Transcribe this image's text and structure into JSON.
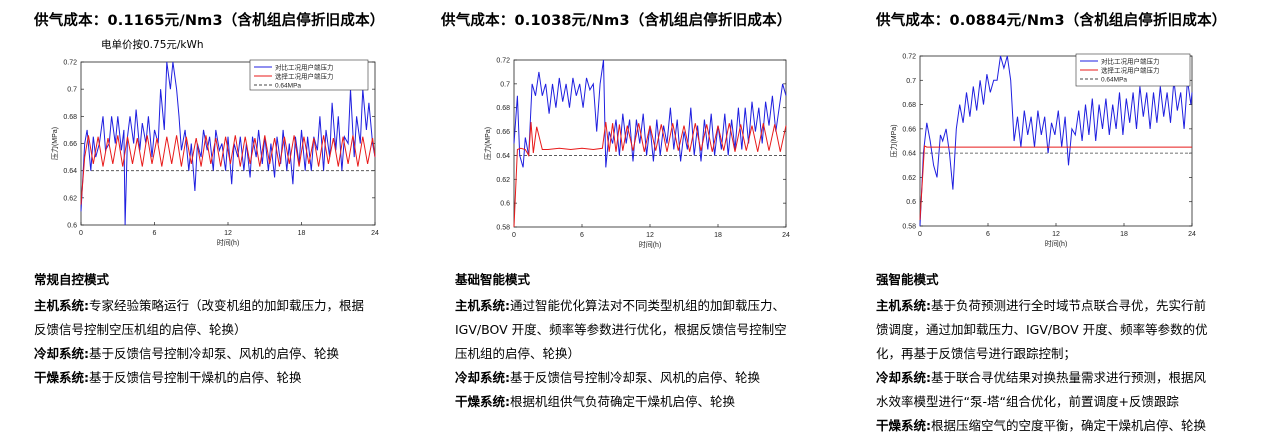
{
  "columns": [
    {
      "title": "供气成本：0.1165元/Nm3（含机组启停折旧成本）",
      "subtitle": "电单价按0.75元/kWh",
      "mode": "常规自控模式",
      "lines": [
        {
          "key": "主机系统:",
          "text": "专家经验策略运行（改变机组的加卸载压力，根据"
        },
        {
          "key": "",
          "text": "反馈信号控制空压机组的启停、轮换）"
        },
        {
          "key": "冷却系统:",
          "text": "基于反馈信号控制冷却泵、风机的启停、轮换"
        },
        {
          "key": "干燥系统:",
          "text": "基于反馈信号控制干燥机的启停、轮换"
        }
      ]
    },
    {
      "title": "供气成本：0.1038元/Nm3（含机组启停折旧成本）",
      "subtitle": "",
      "mode": "基础智能模式",
      "lines": [
        {
          "key": "主机系统:",
          "text": "通过智能优化算法对不同类型机组的加卸载压力、"
        },
        {
          "key": "",
          "text": "IGV/BOV 开度、频率等参数进行优化，根据反馈信号控制空"
        },
        {
          "key": "",
          "text": "压机组的启停、轮换）"
        },
        {
          "key": "冷却系统:",
          "text": "基于反馈信号控制冷却泵、风机的启停、轮换"
        },
        {
          "key": "干燥系统:",
          "text": "根据机组供气负荷确定干燥机启停、轮换"
        }
      ]
    },
    {
      "title": "供气成本：0.0884元/Nm3（含机组启停折旧成本）",
      "subtitle": "",
      "mode": "强智能模式",
      "lines": [
        {
          "key": "主机系统:",
          "text": "基于负荷预测进行全时域节点联合寻优，先实行前"
        },
        {
          "key": "",
          "text": "馈调度，通过加卸载压力、IGV/BOV 开度、频率等参数的优"
        },
        {
          "key": "",
          "text": "化，再基于反馈信号进行跟踪控制；"
        },
        {
          "key": "冷却系统:",
          "text": "基于联合寻优结果对换热量需求进行预测，根据风"
        },
        {
          "key": "",
          "text": "水效率模型进行“泵-塔“组合优化，前置调度+反馈跟踪"
        },
        {
          "key": "干燥系统:",
          "text": "根据压缩空气的空度平衡，确定干燥机启停、轮换"
        }
      ]
    }
  ],
  "chart_data": [
    {
      "type": "line",
      "xlabel": "时间(h)",
      "ylabel": "压力(MPa)",
      "xlim": [
        0,
        24
      ],
      "ylim": [
        0.6,
        0.72
      ],
      "xticks": [
        "0",
        "6",
        "12",
        "18",
        "24"
      ],
      "yticks": [
        "0.6",
        "0.62",
        "0.64",
        "0.66",
        "0.68",
        "0.7",
        "0.72"
      ],
      "legend": [
        "对比工况用户端压力",
        "选择工况用户端压力",
        "0.64MPa"
      ],
      "legend_position": "top-right",
      "reference_line": 0.64,
      "series": [
        {
          "name": "对比工况用户端压力",
          "color": "#1f1fe0",
          "x": [
            0,
            0.3,
            0.5,
            0.8,
            1,
            1.2,
            1.5,
            1.8,
            2,
            2.3,
            2.5,
            2.8,
            3,
            3.3,
            3.5,
            3.6,
            3.8,
            4,
            4.3,
            4.5,
            4.8,
            5,
            5.3,
            5.5,
            5.8,
            6,
            6.3,
            6.5,
            6.8,
            7,
            7.3,
            7.5,
            7.8,
            8,
            8.2,
            8.5,
            8.8,
            9,
            9.3,
            9.5,
            9.8,
            10,
            10.3,
            10.5,
            10.8,
            11,
            11.3,
            11.5,
            11.8,
            12,
            12.3,
            12.5,
            12.8,
            13,
            13.3,
            13.5,
            13.8,
            14,
            14.3,
            14.5,
            14.8,
            15,
            15.3,
            15.5,
            15.8,
            16,
            16.3,
            16.5,
            16.8,
            17,
            17.3,
            17.5,
            17.8,
            18,
            18.3,
            18.5,
            18.8,
            19,
            19.3,
            19.5,
            19.8,
            20,
            20.3,
            20.5,
            20.8,
            21,
            21.3,
            21.5,
            21.8,
            22,
            22.3,
            22.5,
            22.8,
            23,
            23.3,
            23.5,
            23.8,
            24
          ],
          "y": [
            0.61,
            0.66,
            0.67,
            0.64,
            0.665,
            0.65,
            0.66,
            0.68,
            0.655,
            0.66,
            0.68,
            0.66,
            0.68,
            0.655,
            0.67,
            0.6,
            0.665,
            0.68,
            0.66,
            0.685,
            0.655,
            0.675,
            0.66,
            0.68,
            0.65,
            0.67,
            0.66,
            0.7,
            0.67,
            0.72,
            0.7,
            0.72,
            0.7,
            0.68,
            0.655,
            0.67,
            0.64,
            0.66,
            0.625,
            0.66,
            0.65,
            0.67,
            0.655,
            0.665,
            0.64,
            0.67,
            0.655,
            0.66,
            0.64,
            0.665,
            0.63,
            0.66,
            0.65,
            0.665,
            0.64,
            0.66,
            0.635,
            0.665,
            0.65,
            0.67,
            0.645,
            0.665,
            0.64,
            0.66,
            0.635,
            0.665,
            0.645,
            0.67,
            0.64,
            0.66,
            0.63,
            0.665,
            0.645,
            0.67,
            0.64,
            0.665,
            0.64,
            0.665,
            0.655,
            0.68,
            0.64,
            0.67,
            0.65,
            0.69,
            0.655,
            0.68,
            0.64,
            0.665,
            0.66,
            0.7,
            0.65,
            0.68,
            0.66,
            0.7,
            0.67,
            0.69,
            0.66,
            0.65
          ]
        },
        {
          "name": "选择工况用户端压力",
          "color": "#e81a1a",
          "x": [
            0,
            0.3,
            0.6,
            1,
            1.4,
            1.8,
            2.2,
            2.6,
            3,
            3.4,
            3.8,
            4.2,
            4.6,
            5,
            5.4,
            5.8,
            6.2,
            6.6,
            7,
            7.4,
            7.8,
            8.2,
            8.6,
            9,
            9.4,
            9.8,
            10.2,
            10.6,
            11,
            11.4,
            11.8,
            12.2,
            12.6,
            13,
            13.4,
            13.8,
            14.2,
            14.6,
            15,
            15.4,
            15.8,
            16.2,
            16.6,
            17,
            17.4,
            17.8,
            18.2,
            18.6,
            19,
            19.4,
            19.8,
            20.2,
            20.6,
            21,
            21.4,
            21.8,
            22.2,
            22.6,
            23,
            23.4,
            23.8,
            24
          ],
          "y": [
            0.615,
            0.65,
            0.666,
            0.645,
            0.665,
            0.643,
            0.664,
            0.645,
            0.666,
            0.643,
            0.665,
            0.645,
            0.664,
            0.643,
            0.666,
            0.645,
            0.664,
            0.643,
            0.665,
            0.645,
            0.666,
            0.643,
            0.665,
            0.645,
            0.664,
            0.643,
            0.666,
            0.645,
            0.664,
            0.643,
            0.665,
            0.645,
            0.666,
            0.643,
            0.665,
            0.645,
            0.664,
            0.643,
            0.666,
            0.645,
            0.664,
            0.643,
            0.665,
            0.645,
            0.666,
            0.643,
            0.665,
            0.645,
            0.664,
            0.643,
            0.666,
            0.645,
            0.664,
            0.643,
            0.665,
            0.645,
            0.666,
            0.643,
            0.665,
            0.645,
            0.664,
            0.65
          ]
        }
      ]
    },
    {
      "type": "line",
      "xlabel": "时间(h)",
      "ylabel": "压力(MPa)",
      "xlim": [
        0,
        24
      ],
      "ylim": [
        0.58,
        0.72
      ],
      "xticks": [
        "0",
        "6",
        "12",
        "18",
        "24"
      ],
      "yticks": [
        "0.58",
        "0.6",
        "0.62",
        "0.64",
        "0.66",
        "0.68",
        "0.7",
        "0.72"
      ],
      "legend": [],
      "legend_position": "",
      "reference_line": 0.64,
      "series": [
        {
          "name": "",
          "color": "#1f1fe0",
          "x": [
            0,
            0.3,
            0.5,
            0.8,
            1,
            1.3,
            1.6,
            1.9,
            2.2,
            2.5,
            2.8,
            3.1,
            3.4,
            3.7,
            4,
            4.3,
            4.6,
            4.9,
            5.2,
            5.5,
            5.8,
            6.1,
            6.4,
            6.7,
            7,
            7.3,
            7.6,
            7.9,
            8.1,
            8.4,
            8.7,
            9,
            9.3,
            9.6,
            9.9,
            10.2,
            10.5,
            10.8,
            11.1,
            11.4,
            11.7,
            12,
            12.3,
            12.6,
            12.9,
            13.2,
            13.5,
            13.8,
            14.1,
            14.4,
            14.7,
            15,
            15.3,
            15.6,
            15.9,
            16.2,
            16.5,
            16.8,
            17.1,
            17.4,
            17.7,
            18,
            18.3,
            18.6,
            18.9,
            19.2,
            19.5,
            19.8,
            20.1,
            20.4,
            20.7,
            21,
            21.3,
            21.6,
            21.9,
            22.2,
            22.5,
            22.8,
            23.1,
            23.4,
            23.7,
            24
          ],
          "y": [
            0.65,
            0.69,
            0.64,
            0.63,
            0.655,
            0.64,
            0.7,
            0.69,
            0.71,
            0.69,
            0.7,
            0.675,
            0.7,
            0.68,
            0.705,
            0.685,
            0.7,
            0.68,
            0.705,
            0.69,
            0.7,
            0.68,
            0.705,
            0.695,
            0.7,
            0.66,
            0.7,
            0.72,
            0.63,
            0.66,
            0.65,
            0.67,
            0.64,
            0.675,
            0.65,
            0.67,
            0.635,
            0.67,
            0.65,
            0.675,
            0.64,
            0.665,
            0.635,
            0.67,
            0.64,
            0.665,
            0.65,
            0.68,
            0.645,
            0.67,
            0.635,
            0.66,
            0.645,
            0.68,
            0.64,
            0.665,
            0.635,
            0.67,
            0.645,
            0.675,
            0.64,
            0.665,
            0.645,
            0.675,
            0.64,
            0.67,
            0.645,
            0.68,
            0.645,
            0.68,
            0.65,
            0.685,
            0.66,
            0.68,
            0.65,
            0.685,
            0.665,
            0.69,
            0.66,
            0.68,
            0.7,
            0.69
          ]
        },
        {
          "name": "",
          "color": "#e81a1a",
          "x": [
            0,
            0.3,
            0.6,
            1,
            1.3,
            1.5,
            1.7,
            2,
            2.5,
            3,
            4,
            5,
            6,
            7,
            7.8,
            8.1,
            8.4,
            8.7,
            9,
            9.3,
            9.6,
            10,
            10.5,
            11,
            11.5,
            12,
            12.5,
            13,
            13.5,
            14,
            14.5,
            15,
            15.5,
            16,
            16.5,
            17,
            17.5,
            18,
            18.5,
            19,
            19.5,
            20,
            20.5,
            21,
            21.5,
            22,
            22.5,
            23,
            23.5,
            24
          ],
          "y": [
            0.58,
            0.645,
            0.646,
            0.645,
            0.64,
            0.668,
            0.642,
            0.664,
            0.645,
            0.645,
            0.646,
            0.645,
            0.646,
            0.645,
            0.646,
            0.668,
            0.643,
            0.667,
            0.643,
            0.666,
            0.644,
            0.665,
            0.644,
            0.667,
            0.643,
            0.665,
            0.644,
            0.666,
            0.643,
            0.667,
            0.644,
            0.665,
            0.643,
            0.667,
            0.644,
            0.666,
            0.643,
            0.665,
            0.644,
            0.667,
            0.643,
            0.666,
            0.644,
            0.665,
            0.643,
            0.667,
            0.644,
            0.666,
            0.643,
            0.665
          ]
        }
      ]
    },
    {
      "type": "line",
      "xlabel": "时间(h)",
      "ylabel": "压力(MPa)",
      "xlim": [
        0,
        24
      ],
      "ylim": [
        0.58,
        0.72
      ],
      "xticks": [
        "0",
        "6",
        "12",
        "18",
        "24"
      ],
      "yticks": [
        "0.58",
        "0.6",
        "0.62",
        "0.64",
        "0.66",
        "0.68",
        "0.7",
        "0.72"
      ],
      "legend": [
        "对比工况用户端压力",
        "选择工况用户端压力",
        "0.64MPa"
      ],
      "legend_position": "top-right",
      "reference_line": 0.64,
      "series": [
        {
          "name": "对比工况用户端压力",
          "color": "#1f1fe0",
          "x": [
            0,
            0.3,
            0.6,
            0.9,
            1.2,
            1.5,
            1.8,
            2,
            2.3,
            2.6,
            2.9,
            3.2,
            3.5,
            3.8,
            4.1,
            4.4,
            4.7,
            5,
            5.3,
            5.6,
            5.9,
            6.2,
            6.5,
            6.8,
            7.1,
            7.4,
            7.7,
            8,
            8.3,
            8.6,
            8.9,
            9.2,
            9.5,
            9.8,
            10.1,
            10.4,
            10.7,
            11,
            11.3,
            11.6,
            11.9,
            12.2,
            12.5,
            12.8,
            13.1,
            13.4,
            13.7,
            14,
            14.3,
            14.6,
            14.9,
            15.2,
            15.5,
            15.8,
            16.1,
            16.4,
            16.7,
            17,
            17.3,
            17.6,
            17.9,
            18.2,
            18.5,
            18.8,
            19.1,
            19.4,
            19.7,
            20,
            20.3,
            20.6,
            20.9,
            21.2,
            21.5,
            21.8,
            22.1,
            22.4,
            22.7,
            23,
            23.3,
            23.6,
            23.9,
            24
          ],
          "y": [
            0.58,
            0.64,
            0.665,
            0.65,
            0.63,
            0.62,
            0.655,
            0.65,
            0.66,
            0.64,
            0.61,
            0.66,
            0.68,
            0.665,
            0.69,
            0.67,
            0.695,
            0.675,
            0.7,
            0.68,
            0.705,
            0.69,
            0.7,
            0.7,
            0.72,
            0.71,
            0.72,
            0.7,
            0.65,
            0.67,
            0.645,
            0.675,
            0.655,
            0.67,
            0.645,
            0.675,
            0.655,
            0.67,
            0.64,
            0.665,
            0.655,
            0.675,
            0.645,
            0.67,
            0.63,
            0.66,
            0.655,
            0.675,
            0.65,
            0.68,
            0.655,
            0.685,
            0.65,
            0.68,
            0.66,
            0.685,
            0.655,
            0.68,
            0.66,
            0.69,
            0.655,
            0.685,
            0.665,
            0.69,
            0.66,
            0.695,
            0.67,
            0.69,
            0.66,
            0.69,
            0.665,
            0.695,
            0.67,
            0.69,
            0.665,
            0.7,
            0.675,
            0.69,
            0.66,
            0.7,
            0.68,
            0.69
          ]
        },
        {
          "name": "选择工况用户端压力",
          "color": "#e81a1a",
          "x": [
            0,
            0.4,
            0.6,
            1,
            2,
            4,
            6,
            8,
            10,
            12,
            14,
            16,
            18,
            20,
            22,
            24
          ],
          "y": [
            0.585,
            0.646,
            0.645,
            0.645,
            0.645,
            0.645,
            0.645,
            0.645,
            0.645,
            0.645,
            0.645,
            0.645,
            0.645,
            0.645,
            0.645,
            0.645
          ]
        }
      ]
    }
  ]
}
